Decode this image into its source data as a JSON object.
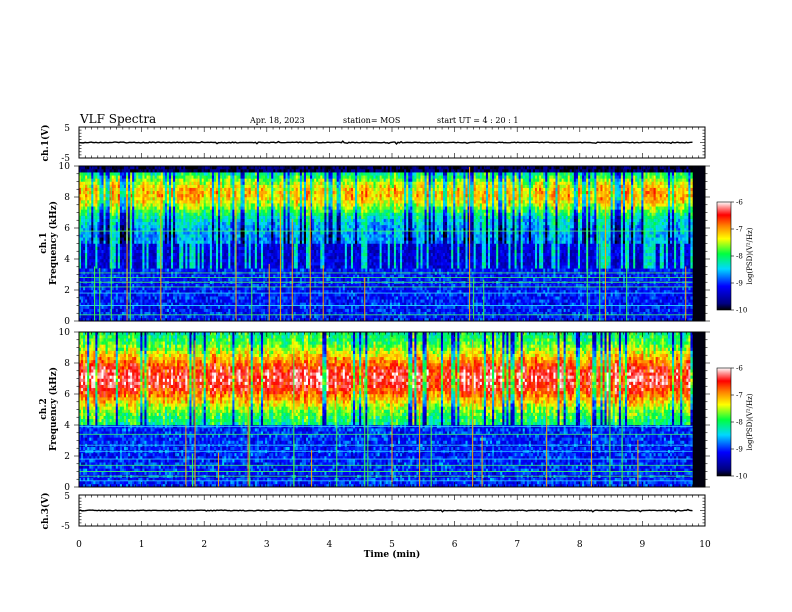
{
  "header": {
    "title": "VLF Spectra",
    "date": "Apr. 18, 2023",
    "station": "station= MOS",
    "start_ut": "start  UT =   4 : 20 : 1"
  },
  "chart_data": [
    {
      "type": "line",
      "name": "ch1-voltage",
      "ylabel": "ch.1(V)",
      "ylim": [
        -5,
        5
      ],
      "yticks": [
        "5",
        "-5"
      ],
      "xlim": [
        0,
        10
      ],
      "series": [
        {
          "x": [
            0,
            9.8
          ],
          "y": [
            0,
            0
          ]
        }
      ]
    },
    {
      "type": "heatmap",
      "name": "ch1-spectrogram",
      "ylabel": "ch.1\nFrequency (kHz)",
      "ylim": [
        0,
        10
      ],
      "yticks": [
        "0",
        "2",
        "4",
        "6",
        "8",
        "10"
      ],
      "xlim": [
        0,
        10
      ],
      "data_end_min": 9.8,
      "broadband_band_khz": [
        4,
        9.5
      ],
      "peak_band_khz": [
        7.5,
        9.2
      ],
      "narrowband_lines_khz": [
        0.4,
        1.0,
        1.8,
        2.2,
        2.5,
        2.8,
        3.1,
        5.8
      ],
      "colorbar": {
        "label": "log(PSD)(V²/Hz)",
        "min": -10,
        "max": -6,
        "ticks": [
          "-6",
          "-7",
          "-8",
          "-9",
          "-10"
        ]
      }
    },
    {
      "type": "heatmap",
      "name": "ch2-spectrogram",
      "ylabel": "ch.2\nFrequency (kHz)",
      "ylim": [
        0,
        10
      ],
      "yticks": [
        "0",
        "2",
        "4",
        "6",
        "8",
        "10"
      ],
      "xlim": [
        0,
        10
      ],
      "data_end_min": 9.8,
      "broadband_band_khz": [
        4,
        10
      ],
      "peak_band_khz": [
        5.5,
        8.5
      ],
      "narrowband_lines_khz": [
        0.4,
        0.7,
        1.0,
        1.4,
        1.8,
        2.3,
        2.7,
        3.4,
        3.9
      ],
      "colorbar": {
        "label": "log(PSD)(V²/Hz)",
        "min": -10,
        "max": -6,
        "ticks": [
          "-6",
          "-7",
          "-8",
          "-9",
          "-10"
        ]
      }
    },
    {
      "type": "line",
      "name": "ch3-voltage",
      "ylabel": "ch.3(V)",
      "ylim": [
        -5,
        5
      ],
      "yticks": [
        "5",
        "-5"
      ],
      "xlim": [
        0,
        10
      ],
      "xlabel": "Time (min)",
      "xticks": [
        "0",
        "1",
        "2",
        "3",
        "4",
        "5",
        "6",
        "7",
        "8",
        "9",
        "10"
      ],
      "series": [
        {
          "x": [
            0,
            9.8
          ],
          "y": [
            0,
            0
          ]
        }
      ]
    }
  ]
}
